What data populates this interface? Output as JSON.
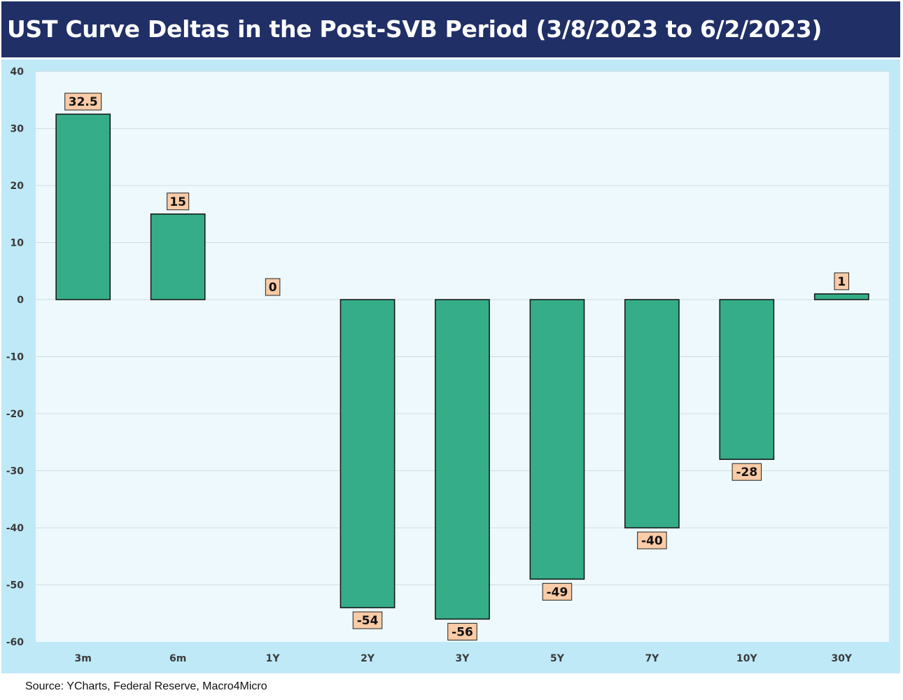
{
  "title": "UST Curve Deltas in the Post-SVB Period (3/8/2023 to 6/2/2023)",
  "source": "Source: YCharts, Federal Reserve, Macro4Micro",
  "colors": {
    "bar_fill": "#35ad88",
    "bar_stroke": "#111111",
    "label_fill": "#f9cba6",
    "plot_bg": "#edf9fc",
    "outer_bg": "#bfe9f7",
    "title_bg": "#202f66",
    "grid": "#cfdde2"
  },
  "chart_data": {
    "type": "bar",
    "title": "UST Curve Deltas in the Post-SVB Period (3/8/2023 to 6/2/2023)",
    "categories": [
      "3m",
      "6m",
      "1Y",
      "2Y",
      "3Y",
      "5Y",
      "7Y",
      "10Y",
      "30Y"
    ],
    "values": [
      32.5,
      15,
      0,
      -54,
      -56,
      -49,
      -40,
      -28,
      1
    ],
    "data_labels": [
      "32.5",
      "15",
      "0",
      "-54",
      "-56",
      "-49",
      "-40",
      "-28",
      "1"
    ],
    "ylim": [
      -60,
      40
    ],
    "yticks": [
      40,
      30,
      20,
      10,
      0,
      -10,
      -20,
      -30,
      -40,
      -50,
      -60
    ],
    "xlabel": "",
    "ylabel": "",
    "grid": true,
    "legend": "none"
  }
}
